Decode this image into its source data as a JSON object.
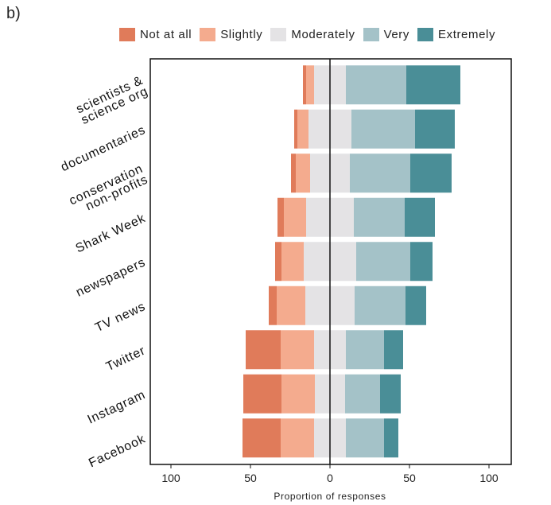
{
  "panel_label": "b)",
  "chart_data": {
    "type": "bar",
    "orientation": "horizontal",
    "stacking": "diverging",
    "xlabel": "Proportion of responses",
    "xlim": [
      -110,
      110
    ],
    "xticks": [
      -100,
      -50,
      0,
      50,
      100
    ],
    "xtick_labels": [
      "100",
      "50",
      "0",
      "50",
      "100"
    ],
    "grid": false,
    "legend_position": "top",
    "categories": [
      "scientists & science org",
      "documentaries",
      "conservation non-profits",
      "Shark Week",
      "newspapers",
      "TV news",
      "Twitter",
      "Instagram",
      "Facebook"
    ],
    "category_lines": [
      [
        "scientists &",
        "science org"
      ],
      [
        "documentaries"
      ],
      [
        "conservation",
        "non-profits"
      ],
      [
        "Shark Week"
      ],
      [
        "newspapers"
      ],
      [
        "TV news"
      ],
      [
        "Twitter"
      ],
      [
        "Instagram"
      ],
      [
        "Facebook"
      ]
    ],
    "series": [
      {
        "name": "Not at all",
        "color": "#e07b5a",
        "values": [
          2,
          2,
          3,
          4,
          4,
          5,
          22,
          24,
          24
        ]
      },
      {
        "name": "Slightly",
        "color": "#f4ab8e",
        "values": [
          5,
          7,
          9,
          14,
          14,
          18,
          21,
          21,
          21
        ]
      },
      {
        "name": "Moderately",
        "color": "#e4e3e5",
        "values": [
          20,
          27,
          25,
          30,
          33,
          31,
          20,
          19,
          20
        ]
      },
      {
        "name": "Very",
        "color": "#a4c2c8",
        "values": [
          38,
          40,
          38,
          32,
          34,
          32,
          24,
          22,
          24
        ]
      },
      {
        "name": "Extremely",
        "color": "#4a8e97",
        "values": [
          34,
          25,
          26,
          19,
          14,
          13,
          12,
          13,
          9
        ]
      }
    ]
  }
}
